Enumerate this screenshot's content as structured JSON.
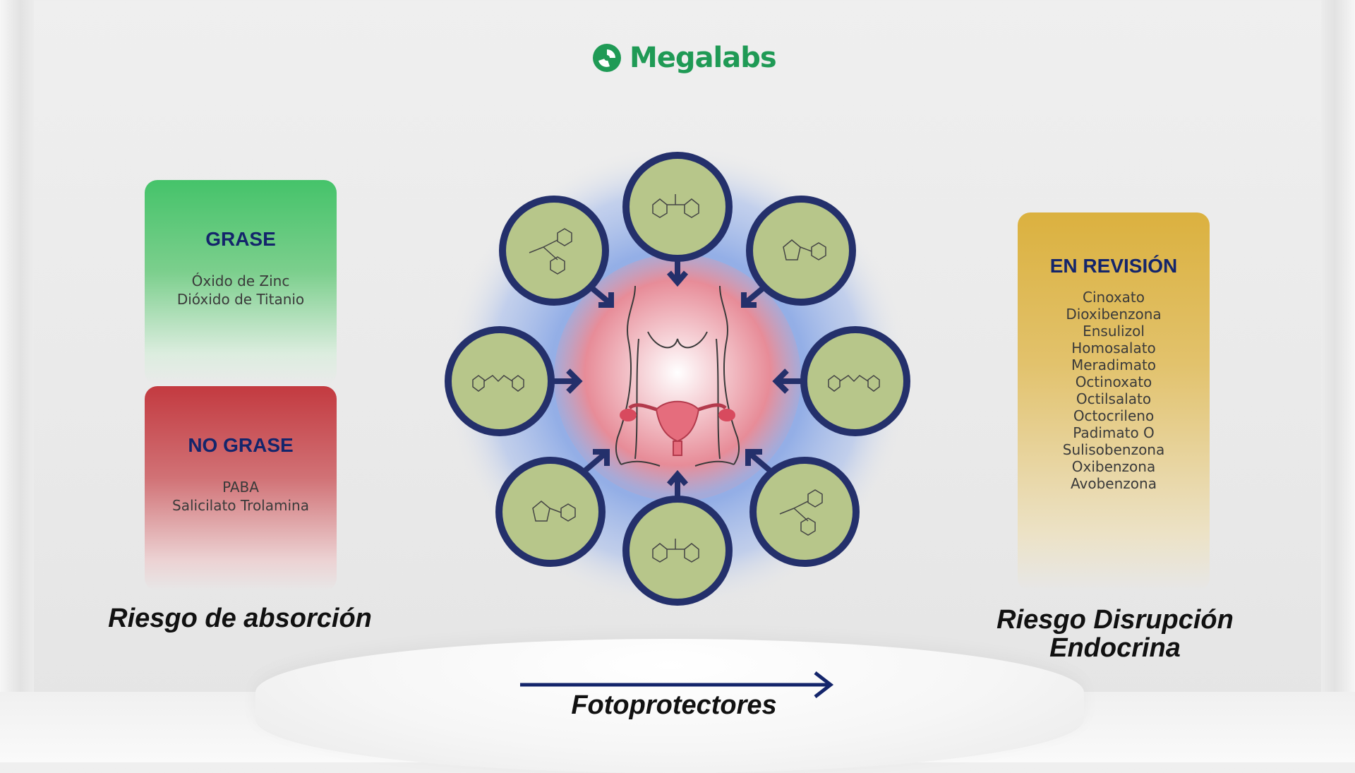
{
  "logo": {
    "text": "Megalabs",
    "brand_color": "#1f9a55"
  },
  "left_cards": [
    {
      "title": "GRASE",
      "items": [
        "Óxido de Zinc",
        "Dióxido de Titanio"
      ],
      "color": "#45c36a"
    },
    {
      "title": "NO GRASE",
      "items": [
        "PABA",
        "Salicilato Trolamina"
      ],
      "color": "#c33a40"
    }
  ],
  "left_caption": "Riesgo de absorción",
  "right_card": {
    "title": "EN REVISIÓN",
    "items": [
      "Cinoxato",
      "Dioxibenzona",
      "Ensulizol",
      "Homosalato",
      "Meradimato",
      "Octinoxato",
      "Octilsalato",
      "Octocrileno",
      "Padimato O",
      "Sulisobenzona",
      "Oxibenzona",
      "Avobenzona"
    ],
    "color": "#dbb13f"
  },
  "right_caption": [
    "Riesgo Disrupción",
    "Endocrina"
  ],
  "center": {
    "arrow_caption": "Fotoprotectores",
    "molecule_icons": [
      "benzophenone-icon",
      "octocrylene-icon",
      "camphor-icon",
      "avobenzone-icon",
      "avobenzone-icon",
      "octocrylene-icon",
      "benzophenone-icon",
      "camphor-icon"
    ],
    "ring_color": "#24306b",
    "circle_fill": "#b7c68a"
  }
}
